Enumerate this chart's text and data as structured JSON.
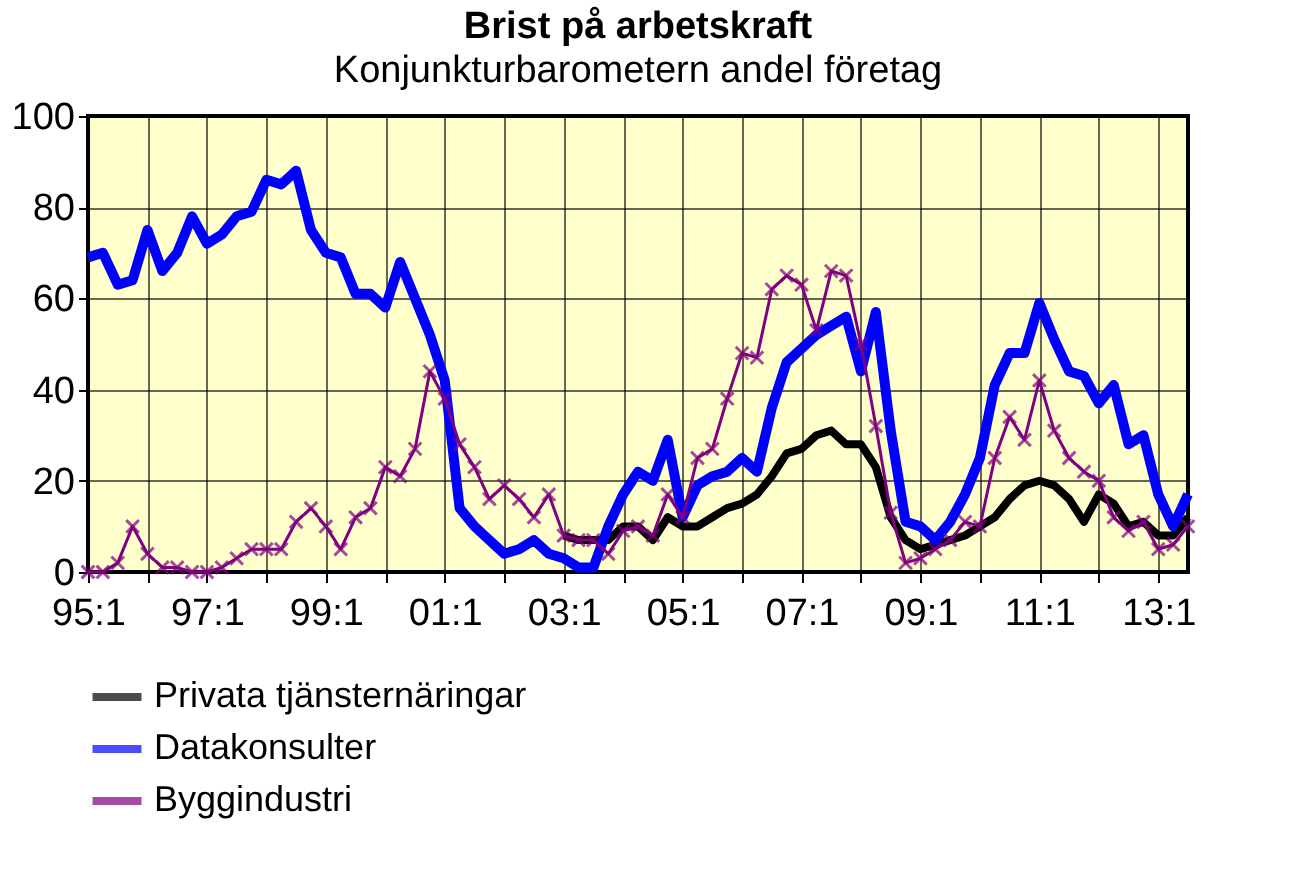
{
  "chart_data": {
    "type": "line",
    "title": "Brist på arbetskraft",
    "subtitle": "Konjunkturbarometern andel företag",
    "categories": [
      "95:1",
      null,
      null,
      null,
      null,
      null,
      null,
      null,
      "97:1",
      null,
      null,
      null,
      null,
      null,
      null,
      null,
      "99:1",
      null,
      null,
      null,
      null,
      null,
      null,
      null,
      "01:1",
      null,
      null,
      null,
      null,
      null,
      null,
      null,
      "03:1",
      null,
      null,
      null,
      null,
      null,
      null,
      null,
      "05:1",
      null,
      null,
      null,
      null,
      null,
      null,
      null,
      "07:1",
      null,
      null,
      null,
      null,
      null,
      null,
      null,
      "09:1",
      null,
      null,
      null,
      null,
      null,
      null,
      null,
      "11:1",
      null,
      null,
      null,
      null,
      null,
      null,
      null,
      "13:1",
      null,
      null
    ],
    "series": [
      {
        "name": "Privata tjänsternäringar",
        "color": "#000000",
        "values": [
          null,
          null,
          null,
          null,
          null,
          null,
          null,
          null,
          null,
          null,
          null,
          null,
          null,
          null,
          null,
          null,
          null,
          null,
          null,
          null,
          null,
          null,
          null,
          null,
          null,
          null,
          null,
          null,
          null,
          null,
          null,
          null,
          8,
          7,
          7,
          7,
          10,
          10,
          7,
          12,
          10,
          10,
          12,
          14,
          15,
          17,
          21,
          26,
          27,
          30,
          31,
          28,
          28,
          23,
          12,
          7,
          5,
          6,
          7,
          8,
          10,
          12,
          16,
          19,
          20,
          19,
          16,
          11,
          17,
          15,
          10,
          11,
          8,
          8,
          12
        ]
      },
      {
        "name": "Datakonsulter",
        "color": "#0000ff",
        "values": [
          69,
          70,
          63,
          64,
          75,
          66,
          70,
          78,
          72,
          74,
          78,
          79,
          86,
          85,
          88,
          75,
          70,
          69,
          61,
          61,
          58,
          68,
          60,
          52,
          42,
          14,
          10,
          7,
          4,
          5,
          7,
          4,
          3,
          1,
          1,
          10,
          17,
          22,
          20,
          29,
          12,
          19,
          21,
          22,
          25,
          22,
          36,
          46,
          49,
          52,
          54,
          56,
          44,
          57,
          31,
          11,
          10,
          7,
          11,
          17,
          25,
          41,
          48,
          48,
          59,
          51,
          44,
          43,
          37,
          41,
          28,
          30,
          17,
          10,
          17
        ]
      },
      {
        "name": "Byggindustri",
        "color": "#800080",
        "marker": "cross",
        "values": [
          0,
          0,
          2,
          10,
          4,
          1,
          1,
          0,
          0,
          1,
          3,
          5,
          5,
          5,
          11,
          14,
          10,
          5,
          12,
          14,
          23,
          21,
          27,
          44,
          38,
          28,
          23,
          16,
          19,
          16,
          12,
          17,
          8,
          7,
          7,
          4,
          9,
          10,
          8,
          17,
          12,
          25,
          27,
          38,
          48,
          47,
          62,
          65,
          63,
          53,
          66,
          65,
          50,
          32,
          13,
          2,
          3,
          5,
          7,
          11,
          10,
          25,
          34,
          29,
          42,
          31,
          25,
          22,
          20,
          12,
          9,
          11,
          5,
          6,
          10
        ]
      }
    ],
    "ylim": [
      0,
      100
    ],
    "yticks": [
      0,
      20,
      40,
      60,
      80,
      100
    ],
    "grid": true,
    "legend": "bottom"
  }
}
